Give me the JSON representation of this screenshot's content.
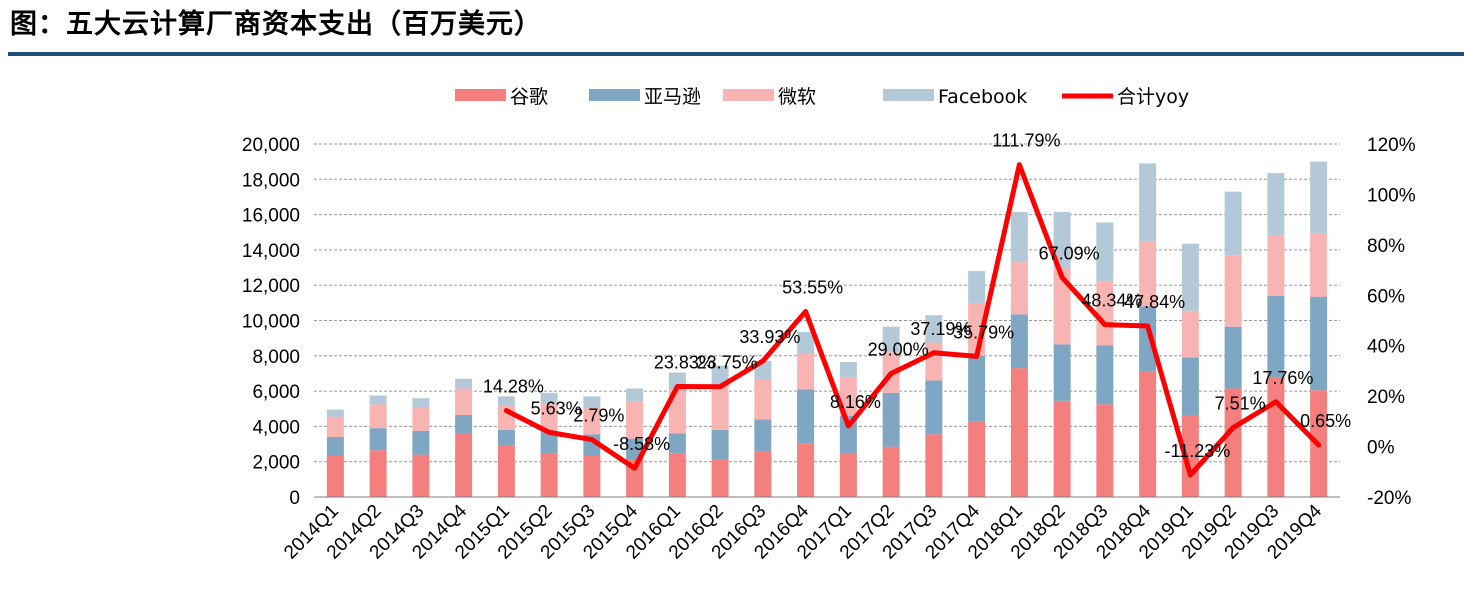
{
  "title": "图：五大云计算厂商资本支出（百万美元）",
  "colors": {
    "google": "#f47f7f",
    "amazon": "#7fa6c2",
    "microsoft": "#f8b3b3",
    "facebook": "#b4c9d8",
    "yoy": "#ff0000",
    "title_rule": "#1f4e79",
    "grid": "#9a9a9a"
  },
  "chart_data": {
    "type": "bar",
    "stacked": true,
    "categories": [
      "2014Q1",
      "2014Q2",
      "2014Q3",
      "2014Q4",
      "2015Q1",
      "2015Q2",
      "2015Q3",
      "2015Q4",
      "2016Q1",
      "2016Q2",
      "2016Q3",
      "2016Q4",
      "2017Q1",
      "2017Q2",
      "2017Q3",
      "2017Q4",
      "2018Q1",
      "2018Q2",
      "2018Q3",
      "2018Q4",
      "2019Q1",
      "2019Q2",
      "2019Q3",
      "2019Q4"
    ],
    "series": [
      {
        "name": "谷歌",
        "type": "bar",
        "values": [
          2350,
          2650,
          2400,
          3600,
          2950,
          2500,
          2350,
          2100,
          2450,
          2150,
          2600,
          3050,
          2500,
          2850,
          3550,
          4300,
          7300,
          5450,
          5250,
          7100,
          4650,
          6150,
          6750,
          6050
        ]
      },
      {
        "name": "亚马逊",
        "type": "bar",
        "values": [
          1050,
          1250,
          1350,
          1050,
          850,
          1200,
          1200,
          1200,
          1150,
          1650,
          1800,
          3050,
          2100,
          3050,
          3050,
          3700,
          3050,
          3200,
          3350,
          3700,
          3250,
          3500,
          4650,
          5300
        ]
      },
      {
        "name": "微软",
        "type": "bar",
        "values": [
          1150,
          1350,
          1300,
          1500,
          1350,
          1600,
          1550,
          2100,
          2500,
          2600,
          2250,
          2000,
          2200,
          2300,
          2150,
          3000,
          2950,
          4300,
          3600,
          3700,
          2650,
          4050,
          3450,
          3600
        ]
      },
      {
        "name": "Facebook",
        "type": "bar",
        "values": [
          400,
          500,
          550,
          550,
          550,
          600,
          600,
          750,
          950,
          1050,
          1050,
          1250,
          850,
          1450,
          1550,
          1800,
          2850,
          3200,
          3350,
          4400,
          3800,
          3600,
          3500,
          4050
        ]
      },
      {
        "name": "合计yoy",
        "type": "line",
        "axis": "right",
        "values": [
          null,
          null,
          null,
          null,
          14.28,
          5.63,
          2.79,
          -8.58,
          23.83,
          23.75,
          33.93,
          53.55,
          8.16,
          29.0,
          37.19,
          35.79,
          111.79,
          67.09,
          48.34,
          47.84,
          -11.23,
          7.51,
          17.76,
          0.65
        ]
      }
    ],
    "yoy_labels": [
      "14.28%",
      "5.63%",
      "2.79%",
      "-8.58%",
      "23.83%",
      "23.75%",
      "33.93%",
      "53.55%",
      "8.16%",
      "29.00%",
      "37.19%",
      "35.79%",
      "111.79%",
      "67.09%",
      "48.34%",
      "47.84%",
      "-11.23%",
      "7.51%",
      "17.76%",
      "0.65%"
    ],
    "y_left": {
      "min": 0,
      "max": 20000,
      "step": 2000,
      "tick_labels": [
        "0",
        "2,000",
        "4,000",
        "6,000",
        "8,000",
        "10,000",
        "12,000",
        "14,000",
        "16,000",
        "18,000",
        "20,000"
      ]
    },
    "y_right": {
      "min": -20,
      "max": 120,
      "step": 20,
      "tick_labels": [
        "-20%",
        "0%",
        "20%",
        "40%",
        "60%",
        "80%",
        "100%",
        "120%"
      ]
    },
    "legend": {
      "position": "top",
      "items": [
        "谷歌",
        "亚马逊",
        "微软",
        "Facebook",
        "合计yoy"
      ]
    },
    "grid": true
  }
}
